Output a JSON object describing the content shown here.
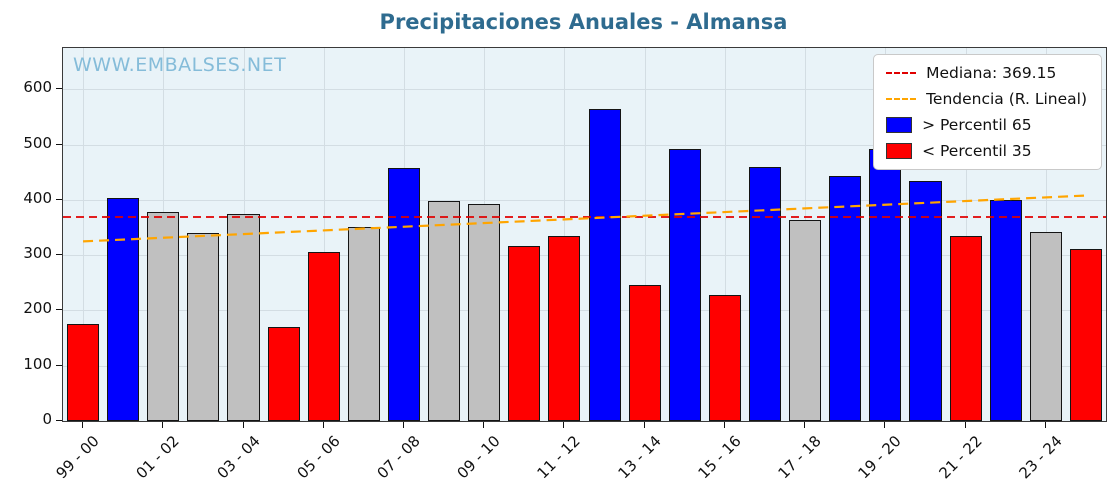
{
  "title": "Precipitaciones Anuales - Almansa",
  "watermark": "WWW.EMBALSES.NET",
  "legend": {
    "mediana_label": "Mediana: 369.15",
    "tendencia_label": "Tendencia (R. Lineal)",
    "p65_label": " > Percentil 65",
    "p35_label": " < Percentil 35"
  },
  "colors": {
    "title": "#2e6b8f",
    "watermark": "#85bcd9",
    "blue": "#0000ff",
    "red": "#ff0000",
    "gray": "#c0c0c0",
    "median_line": "#e00000",
    "trend_line": "#ffa500"
  },
  "chart_data": {
    "type": "bar",
    "title": "Precipitaciones Anuales - Almansa",
    "ylim": [
      0,
      675
    ],
    "yticks": [
      0,
      100,
      200,
      300,
      400,
      500,
      600
    ],
    "x_tick_labels": [
      "99 - 00",
      "01 - 02",
      "03 - 04",
      "05 - 06",
      "07 - 08",
      "09 - 10",
      "11 - 12",
      "13 - 14",
      "15 - 16",
      "17 - 18",
      "19 - 20",
      "21 - 22",
      "23 - 24"
    ],
    "values": [
      175,
      403,
      378,
      340,
      375,
      170,
      306,
      352,
      457,
      398,
      393,
      317,
      335,
      565,
      247,
      493,
      228,
      460,
      363,
      444,
      493,
      435,
      335,
      400,
      342,
      312
    ],
    "bar_classes": [
      "red",
      "blue",
      "gray",
      "gray",
      "gray",
      "red",
      "red",
      "gray",
      "blue",
      "gray",
      "gray",
      "red",
      "red",
      "blue",
      "red",
      "blue",
      "red",
      "blue",
      "gray",
      "blue",
      "blue",
      "blue",
      "red",
      "blue",
      "gray",
      "red"
    ],
    "median": 369.15,
    "trend": {
      "start": 325,
      "end": 408
    },
    "legend_position": "upper right",
    "grid": true
  }
}
